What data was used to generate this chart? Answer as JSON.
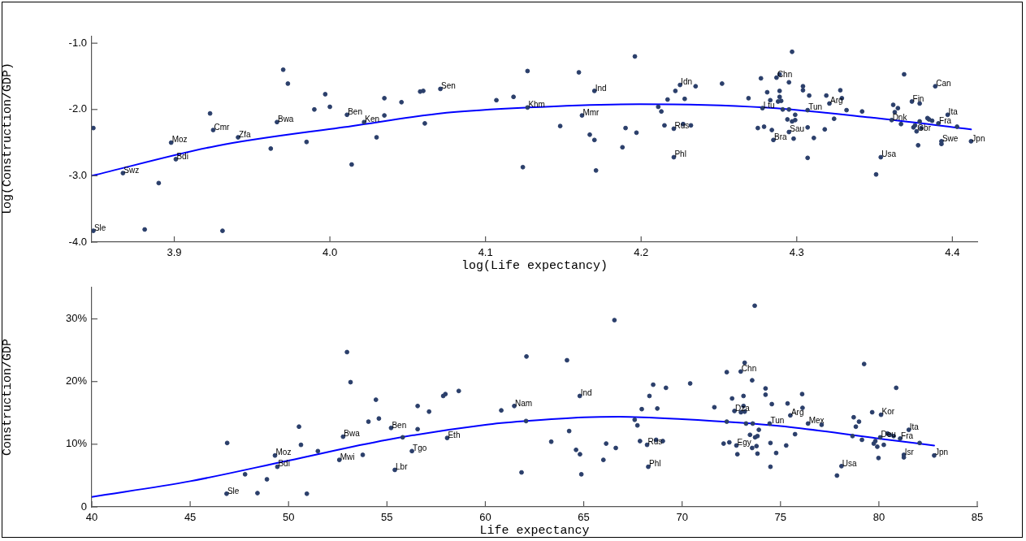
{
  "chart_data": [
    {
      "type": "scatter",
      "xlabel": "log(Life expectancy)",
      "ylabel": "log(Construction/GDP)",
      "xlim": [
        3.847,
        4.416
      ],
      "ylim": [
        -4,
        -0.9
      ],
      "xticks": [
        3.9,
        {
          "value": 4,
          "label": "4.0"
        },
        4.1,
        4.2,
        4.3,
        4.4
      ],
      "yticks": [
        {
          "value": -4,
          "label": "-4.0"
        },
        {
          "value": -3,
          "label": "-3.0"
        },
        {
          "value": -2,
          "label": "-2.0"
        },
        {
          "value": -1,
          "label": "-1.0"
        }
      ],
      "grid": false,
      "legend": false,
      "marker": "circle",
      "series": [
        {
          "type": "scatter",
          "color": "#2b3f6b",
          "x": [
            3.848,
            3.848,
            3.867,
            3.89,
            3.881,
            3.898,
            3.901,
            3.923,
            3.925,
            3.931,
            3.941,
            3.962,
            3.966,
            3.97,
            3.973,
            3.985,
            3.99,
            3.997,
            4.0,
            4.011,
            4.014,
            4.022,
            4.03,
            4.035,
            4.035,
            4.046,
            4.058,
            4.06,
            4.061,
            4.071,
            4.107,
            4.118,
            4.127,
            4.127,
            4.124,
            4.148,
            4.16,
            4.162,
            4.17,
            4.167,
            4.17,
            4.171,
            4.188,
            4.19,
            4.196,
            4.197,
            4.211,
            4.213,
            4.217,
            4.215,
            4.221,
            4.227,
            4.232,
            4.221,
            4.222,
            4.225,
            4.228,
            4.235,
            4.252,
            4.269,
            4.277,
            4.278,
            4.275,
            4.279,
            4.281,
            4.283,
            4.284,
            4.285,
            4.287,
            4.289,
            4.288,
            4.289,
            4.289,
            4.29,
            4.291,
            4.295,
            4.297,
            4.294,
            4.295,
            4.297,
            4.299,
            4.299,
            4.295,
            4.298,
            4.304,
            4.304,
            4.308,
            4.307,
            4.307,
            4.307,
            4.311,
            4.319,
            4.321,
            4.324,
            4.318,
            4.328,
            4.329,
            4.332,
            4.342,
            4.351,
            4.354,
            4.362,
            4.365,
            4.363,
            4.361,
            4.367,
            4.369,
            4.374,
            4.379,
            4.379,
            4.375,
            4.376,
            4.377,
            4.38,
            4.378,
            4.384,
            4.385,
            4.387,
            4.391,
            4.389,
            4.397,
            4.403,
            4.393,
            4.393,
            4.412
          ],
          "values": [
            -2.28,
            -3.83,
            -2.96,
            -3.11,
            -3.81,
            -2.5,
            -2.75,
            -2.06,
            -2.31,
            -3.83,
            -2.42,
            -2.59,
            -2.19,
            -1.4,
            -1.61,
            -2.49,
            -2.0,
            -1.77,
            -1.96,
            -2.08,
            -2.83,
            -2.19,
            -2.42,
            -2.09,
            -1.83,
            -1.89,
            -1.73,
            -1.72,
            -2.21,
            -1.69,
            -1.86,
            -1.81,
            -1.97,
            -1.42,
            -2.87,
            -2.25,
            -1.44,
            -2.09,
            -1.72,
            -2.38,
            -2.46,
            -2.92,
            -2.57,
            -2.28,
            -1.2,
            -2.35,
            -1.96,
            -2.03,
            -1.85,
            -2.24,
            -2.29,
            -2.22,
            -2.24,
            -2.72,
            -1.72,
            -1.63,
            -1.84,
            -1.65,
            -1.61,
            -1.83,
            -1.53,
            -1.98,
            -2.28,
            -2.26,
            -1.74,
            -1.86,
            -2.31,
            -2.46,
            -1.52,
            -1.47,
            -1.88,
            -1.72,
            -1.81,
            -1.87,
            -2.0,
            -1.59,
            -1.13,
            -2.15,
            -2.0,
            -2.18,
            -2.08,
            -2.16,
            -2.34,
            -2.44,
            -1.65,
            -1.71,
            -1.79,
            -2.01,
            -2.27,
            -2.73,
            -2.43,
            -1.79,
            -1.91,
            -2.14,
            -2.3,
            -1.71,
            -1.83,
            -2.01,
            -2.03,
            -2.98,
            -2.72,
            -1.93,
            -1.98,
            -2.04,
            -2.16,
            -2.22,
            -1.47,
            -1.88,
            -1.91,
            -2.18,
            -2.27,
            -2.24,
            -2.33,
            -2.28,
            -2.54,
            -2.13,
            -2.15,
            -2.17,
            -2.21,
            -1.65,
            -2.08,
            -2.26,
            -2.48,
            -2.52,
            -2.48
          ]
        },
        {
          "type": "line",
          "color": "#0000ff",
          "marker": "none",
          "x": [
            3.847,
            3.927,
            4.014,
            4.075,
            4.127,
            4.199,
            4.279,
            4.347,
            4.412
          ],
          "values": [
            -3.0,
            -2.55,
            -2.25,
            -2.05,
            -1.97,
            -1.92,
            -1.97,
            -2.12,
            -2.3
          ]
        }
      ],
      "annotations": [
        {
          "text": "Sle",
          "x": 3.848,
          "y": -3.83
        },
        {
          "text": "Swz",
          "x": 3.867,
          "y": -2.96
        },
        {
          "text": "Moz",
          "x": 3.898,
          "y": -2.5
        },
        {
          "text": "Bdi",
          "x": 3.901,
          "y": -2.75
        },
        {
          "text": "Cmr",
          "x": 3.925,
          "y": -2.31
        },
        {
          "text": "Zfa",
          "x": 3.941,
          "y": -2.42
        },
        {
          "text": "Bwa",
          "x": 3.966,
          "y": -2.19
        },
        {
          "text": "Ben",
          "x": 4.011,
          "y": -2.08
        },
        {
          "text": "Ken",
          "x": 4.022,
          "y": -2.19
        },
        {
          "text": "Sen",
          "x": 4.071,
          "y": -1.69
        },
        {
          "text": "Khm",
          "x": 4.127,
          "y": -1.97
        },
        {
          "text": "Mmr",
          "x": 4.162,
          "y": -2.09
        },
        {
          "text": "Ind",
          "x": 4.17,
          "y": -1.72
        },
        {
          "text": "Idn",
          "x": 4.225,
          "y": -1.63
        },
        {
          "text": "Rus",
          "x": 4.221,
          "y": -2.29
        },
        {
          "text": "Phl",
          "x": 4.221,
          "y": -2.72
        },
        {
          "text": "Ltu",
          "x": 4.278,
          "y": -1.98
        },
        {
          "text": "Chn",
          "x": 4.287,
          "y": -1.52
        },
        {
          "text": "Bra",
          "x": 4.285,
          "y": -2.46
        },
        {
          "text": "Sau",
          "x": 4.295,
          "y": -2.34
        },
        {
          "text": "Tun",
          "x": 4.307,
          "y": -2.01
        },
        {
          "text": "Arg",
          "x": 4.321,
          "y": -1.91
        },
        {
          "text": "Usa",
          "x": 4.354,
          "y": -2.72
        },
        {
          "text": "Dnk",
          "x": 4.361,
          "y": -2.16
        },
        {
          "text": "Fin",
          "x": 4.374,
          "y": -1.88
        },
        {
          "text": "Can",
          "x": 4.389,
          "y": -1.65
        },
        {
          "text": "Gbr",
          "x": 4.377,
          "y": -2.33
        },
        {
          "text": "Ita",
          "x": 4.397,
          "y": -2.08
        },
        {
          "text": "Fra",
          "x": 4.391,
          "y": -2.21
        },
        {
          "text": "Swe",
          "x": 4.393,
          "y": -2.48
        },
        {
          "text": "Jpn",
          "x": 4.412,
          "y": -2.48
        }
      ]
    },
    {
      "type": "scatter",
      "xlabel": "Life expectancy",
      "ylabel": "Construction/GDP",
      "xlim": [
        40,
        85
      ],
      "ylim": [
        0,
        35
      ],
      "xticks": [
        40,
        45,
        50,
        55,
        60,
        65,
        70,
        75,
        80,
        85
      ],
      "yticks": [
        0,
        {
          "value": 10,
          "label": "10%"
        },
        {
          "value": 20,
          "label": "20%"
        },
        {
          "value": 30,
          "label": "30%"
        }
      ],
      "grid": false,
      "legend": false,
      "marker": "circle",
      "series": [
        {
          "type": "scatter",
          "color": "#2b3f6b",
          "x": [
            46.85,
            46.88,
            47.79,
            48.42,
            48.9,
            49.31,
            49.43,
            50.53,
            50.63,
            50.93,
            51.49,
            52.58,
            52.77,
            52.97,
            53.15,
            53.77,
            54.06,
            54.44,
            54.59,
            55.21,
            55.4,
            55.8,
            56.27,
            56.56,
            56.56,
            57.14,
            57.86,
            57.97,
            58.06,
            58.65,
            60.81,
            61.47,
            61.84,
            62.09,
            62.07,
            63.35,
            64.15,
            64.26,
            64.61,
            64.8,
            64.81,
            64.88,
            66.0,
            66.14,
            66.56,
            66.63,
            67.59,
            67.73,
            67.86,
            67.95,
            68.22,
            68.28,
            68.34,
            68.53,
            68.68,
            68.74,
            69.02,
            69.18,
            70.41,
            71.64,
            72.11,
            72.27,
            72.27,
            72.4,
            72.54,
            72.66,
            72.76,
            72.81,
            72.98,
            73.18,
            73.12,
            73.12,
            72.99,
            73.18,
            73.25,
            73.45,
            73.56,
            73.59,
            73.56,
            73.69,
            73.71,
            73.83,
            73.9,
            73.78,
            73.83,
            74.24,
            74.24,
            74.45,
            74.49,
            74.49,
            74.56,
            74.78,
            75.29,
            75.36,
            75.5,
            75.74,
            76.1,
            76.12,
            76.4,
            77.09,
            78.1,
            77.87,
            78.66,
            78.72,
            78.83,
            78.99,
            79.14,
            79.25,
            79.66,
            80.11,
            79.74,
            79.82,
            79.92,
            80.07,
            79.98,
            80.25,
            80.44,
            80.55,
            80.75,
            80.88,
            81.08,
            81.52,
            81.27,
            81.27,
            82.07,
            82.81
          ],
          "values": [
            2.1,
            10.2,
            5.2,
            2.2,
            4.4,
            8.2,
            6.4,
            12.8,
            9.9,
            2.1,
            8.9,
            7.5,
            11.2,
            24.7,
            19.9,
            8.3,
            13.6,
            17.1,
            14.1,
            12.6,
            5.9,
            11.1,
            8.9,
            16.1,
            12.4,
            15.2,
            17.7,
            18.0,
            11.0,
            18.5,
            15.4,
            16.1,
            5.5,
            24.0,
            13.7,
            10.4,
            23.4,
            12.1,
            9.1,
            17.7,
            8.4,
            5.2,
            7.5,
            10.1,
            29.8,
            9.4,
            13.9,
            13.0,
            10.5,
            15.6,
            9.9,
            6.4,
            17.7,
            19.5,
            10.7,
            15.7,
            10.5,
            19.0,
            19.7,
            15.9,
            10.1,
            21.5,
            13.6,
            10.3,
            17.3,
            15.3,
            9.8,
            8.4,
            21.6,
            23.0,
            17.7,
            16.1,
            15.1,
            15.2,
            13.3,
            11.5,
            20.2,
            13.3,
            9.4,
            32.1,
            11.1,
            11.3,
            12.3,
            9.7,
            8.5,
            18.9,
            17.9,
            13.3,
            10.2,
            6.4,
            16.4,
            8.6,
            9.8,
            16.5,
            14.6,
            11.6,
            18.0,
            15.8,
            13.3,
            13.1,
            6.5,
            5.0,
            11.3,
            14.3,
            12.8,
            13.6,
            10.7,
            22.8,
            15.1,
            14.7,
            10.1,
            10.5,
            9.6,
            11.1,
            7.8,
            9.9,
            11.7,
            11.5,
            11.3,
            19.0,
            10.9,
            12.3,
            8.3,
            7.9,
            10.2,
            8.2
          ]
        },
        {
          "type": "line",
          "color": "#0000ff",
          "marker": "none",
          "x": [
            40,
            45,
            50,
            55,
            60,
            62.07,
            65,
            66.8,
            70,
            75,
            80,
            82.81
          ],
          "values": [
            1.6,
            4.1,
            7.4,
            10.7,
            13.1,
            13.7,
            14.3,
            14.4,
            14.0,
            12.9,
            10.9,
            9.8
          ]
        }
      ],
      "annotations": [
        {
          "text": "Sle",
          "x": 46.85,
          "y": 2.1
        },
        {
          "text": "Moz",
          "x": 49.31,
          "y": 8.2
        },
        {
          "text": "Bdi",
          "x": 49.43,
          "y": 6.4
        },
        {
          "text": "Mwi",
          "x": 52.58,
          "y": 7.5
        },
        {
          "text": "Bwa",
          "x": 52.77,
          "y": 11.2
        },
        {
          "text": "Ben",
          "x": 55.21,
          "y": 12.6
        },
        {
          "text": "Lbr",
          "x": 55.4,
          "y": 5.9
        },
        {
          "text": "Tgo",
          "x": 56.27,
          "y": 8.9
        },
        {
          "text": "Eth",
          "x": 58.06,
          "y": 11.0
        },
        {
          "text": "Nam",
          "x": 61.47,
          "y": 16.1
        },
        {
          "text": "Ind",
          "x": 64.8,
          "y": 17.7
        },
        {
          "text": "Rus",
          "x": 68.22,
          "y": 9.9
        },
        {
          "text": "Phl",
          "x": 68.28,
          "y": 6.4
        },
        {
          "text": "Chn",
          "x": 72.98,
          "y": 21.6
        },
        {
          "text": "Dza",
          "x": 72.66,
          "y": 15.3
        },
        {
          "text": "Egy",
          "x": 72.76,
          "y": 9.8
        },
        {
          "text": "Tun",
          "x": 74.45,
          "y": 13.3
        },
        {
          "text": "Arg",
          "x": 75.5,
          "y": 14.6
        },
        {
          "text": "Mex",
          "x": 76.4,
          "y": 13.3
        },
        {
          "text": "Usa",
          "x": 78.1,
          "y": 6.5
        },
        {
          "text": "Kor",
          "x": 80.11,
          "y": 14.7
        },
        {
          "text": "Deu",
          "x": 80.07,
          "y": 11.1
        },
        {
          "text": "Ita",
          "x": 81.52,
          "y": 12.3
        },
        {
          "text": "Fra",
          "x": 81.08,
          "y": 10.9
        },
        {
          "text": "Isr",
          "x": 81.27,
          "y": 8.3
        },
        {
          "text": "Jpn",
          "x": 82.81,
          "y": 8.2
        }
      ]
    }
  ]
}
